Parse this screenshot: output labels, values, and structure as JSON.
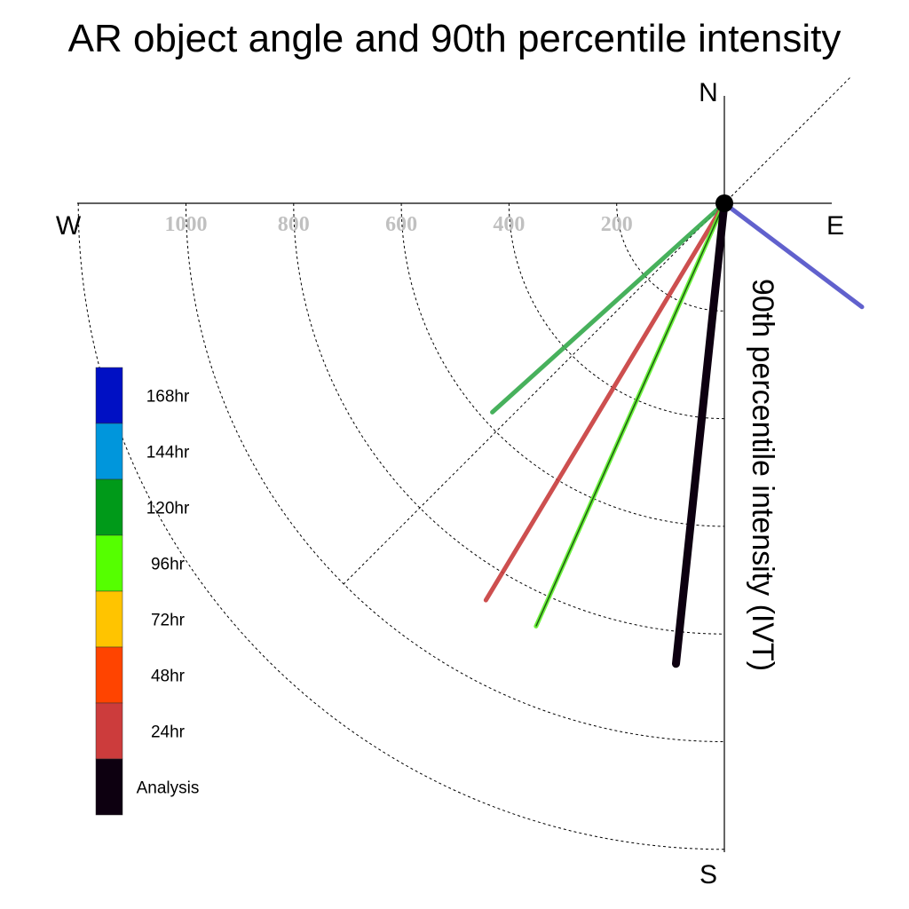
{
  "chart_data": {
    "type": "polar-line",
    "title": "AR object angle and 90th percentile intensity",
    "radial_label": "90th percentile intensity (IVT)",
    "directions": {
      "north": "N",
      "south": "S",
      "east": "E",
      "west": "W"
    },
    "radial_ticks": [
      200,
      400,
      600,
      800,
      1000
    ],
    "radial_tick_labels": [
      "200",
      "400",
      "600",
      "800",
      "1000"
    ],
    "rmax": 1200,
    "series": [
      {
        "name": "168hr",
        "color": "#5050c8",
        "angle_deg": 127,
        "intensity": 320
      },
      {
        "name": "120hr",
        "color": "#33a84a",
        "angle_deg": 228,
        "intensity": 580
      },
      {
        "name": "24hr",
        "color": "#c83c3c",
        "angle_deg": 211,
        "intensity": 860
      },
      {
        "name": "96hr",
        "color": "#5ef02a",
        "angle_deg": 204,
        "intensity": 860
      },
      {
        "name": "Analysis",
        "color": "#0d0010",
        "angle_deg": 186,
        "intensity": 860
      }
    ],
    "legend": [
      {
        "label": "168hr",
        "color": "#0010c4"
      },
      {
        "label": "144hr",
        "color": "#0096dc"
      },
      {
        "label": "120hr",
        "color": "#009a19"
      },
      {
        "label": "96hr",
        "color": "#55ff00"
      },
      {
        "label": "72hr",
        "color": "#ffc400"
      },
      {
        "label": "48hr",
        "color": "#ff4400"
      },
      {
        "label": "24hr",
        "color": "#cc3c3c"
      },
      {
        "label": "Analysis",
        "color": "#0d0010"
      }
    ]
  }
}
